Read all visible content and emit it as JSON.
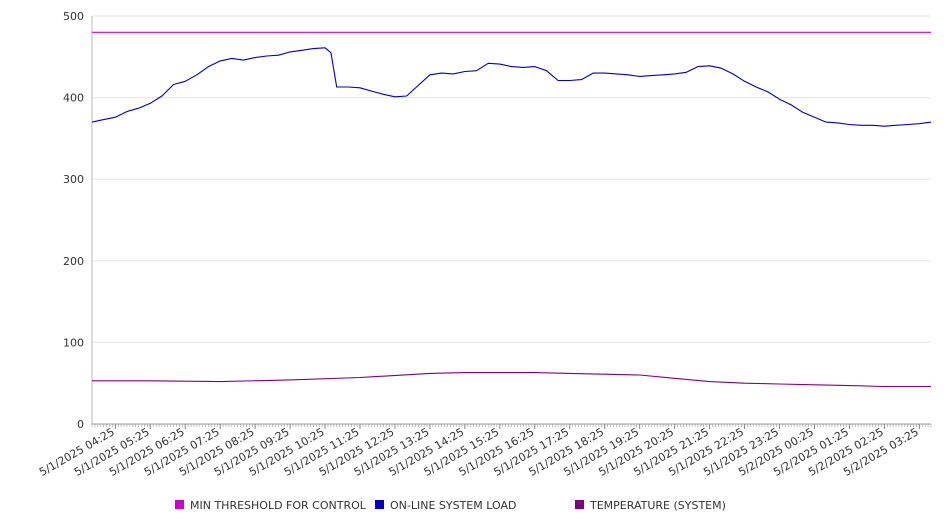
{
  "chart_data": {
    "type": "line",
    "title": "",
    "xlabel": "",
    "ylabel": "",
    "ylim": [
      0,
      500
    ],
    "yticks": [
      0,
      100,
      200,
      300,
      400,
      500
    ],
    "grid": true,
    "legend_position": "bottom",
    "x_tick_labels": [
      "5/1/2025 04:25",
      "5/1/2025 05:25",
      "5/1/2025 06:25",
      "5/1/2025 07:25",
      "5/1/2025 08:25",
      "5/1/2025 09:25",
      "5/1/2025 10:25",
      "5/1/2025 11:25",
      "5/1/2025 12:25",
      "5/1/2025 13:25",
      "5/1/2025 14:25",
      "5/1/2025 15:25",
      "5/1/2025 16:25",
      "5/1/2025 17:25",
      "5/1/2025 18:25",
      "5/1/2025 19:25",
      "5/1/2025 20:25",
      "5/1/2025 21:25",
      "5/1/2025 22:25",
      "5/1/2025 23:25",
      "5/2/2025 00:25",
      "5/2/2025 01:25",
      "5/2/2025 02:25",
      "5/2/2025 03:25"
    ],
    "x_range": [
      "5/1/2025 03:45",
      "5/2/2025 03:45"
    ],
    "series": [
      {
        "name": "MIN THRESHOLD FOR CONTROL",
        "color": "#cc00cc",
        "points": [
          [
            "5/1/2025 03:45",
            480
          ],
          [
            "5/2/2025 03:45",
            480
          ]
        ]
      },
      {
        "name": "ON-LINE SYSTEM LOAD",
        "color": "#0000cc",
        "points": [
          [
            "5/1/2025 03:45",
            370
          ],
          [
            "5/1/2025 04:05",
            373
          ],
          [
            "5/1/2025 04:25",
            376
          ],
          [
            "5/1/2025 04:45",
            383
          ],
          [
            "5/1/2025 05:05",
            387
          ],
          [
            "5/1/2025 05:25",
            393
          ],
          [
            "5/1/2025 05:45",
            402
          ],
          [
            "5/1/2025 06:05",
            416
          ],
          [
            "5/1/2025 06:25",
            420
          ],
          [
            "5/1/2025 06:45",
            428
          ],
          [
            "5/1/2025 07:05",
            438
          ],
          [
            "5/1/2025 07:25",
            445
          ],
          [
            "5/1/2025 07:45",
            448
          ],
          [
            "5/1/2025 08:05",
            446
          ],
          [
            "5/1/2025 08:25",
            449
          ],
          [
            "5/1/2025 08:45",
            451
          ],
          [
            "5/1/2025 09:05",
            452
          ],
          [
            "5/1/2025 09:25",
            456
          ],
          [
            "5/1/2025 09:45",
            458
          ],
          [
            "5/1/2025 10:05",
            460
          ],
          [
            "5/1/2025 10:25",
            461
          ],
          [
            "5/1/2025 10:35",
            455
          ],
          [
            "5/1/2025 10:45",
            413
          ],
          [
            "5/1/2025 11:05",
            413
          ],
          [
            "5/1/2025 11:25",
            412
          ],
          [
            "5/1/2025 11:45",
            408
          ],
          [
            "5/1/2025 12:05",
            404
          ],
          [
            "5/1/2025 12:25",
            401
          ],
          [
            "5/1/2025 12:45",
            402
          ],
          [
            "5/1/2025 13:05",
            415
          ],
          [
            "5/1/2025 13:25",
            428
          ],
          [
            "5/1/2025 13:45",
            430
          ],
          [
            "5/1/2025 14:05",
            429
          ],
          [
            "5/1/2025 14:25",
            432
          ],
          [
            "5/1/2025 14:45",
            433
          ],
          [
            "5/1/2025 15:05",
            442
          ],
          [
            "5/1/2025 15:25",
            441
          ],
          [
            "5/1/2025 15:45",
            438
          ],
          [
            "5/1/2025 16:05",
            437
          ],
          [
            "5/1/2025 16:25",
            438
          ],
          [
            "5/1/2025 16:45",
            433
          ],
          [
            "5/1/2025 17:05",
            421
          ],
          [
            "5/1/2025 17:25",
            421
          ],
          [
            "5/1/2025 17:45",
            422
          ],
          [
            "5/1/2025 18:05",
            430
          ],
          [
            "5/1/2025 18:25",
            430
          ],
          [
            "5/1/2025 18:45",
            429
          ],
          [
            "5/1/2025 19:05",
            428
          ],
          [
            "5/1/2025 19:25",
            426
          ],
          [
            "5/1/2025 19:45",
            427
          ],
          [
            "5/1/2025 20:05",
            428
          ],
          [
            "5/1/2025 20:25",
            429
          ],
          [
            "5/1/2025 20:45",
            431
          ],
          [
            "5/1/2025 21:05",
            438
          ],
          [
            "5/1/2025 21:25",
            439
          ],
          [
            "5/1/2025 21:45",
            436
          ],
          [
            "5/1/2025 22:05",
            429
          ],
          [
            "5/1/2025 22:25",
            420
          ],
          [
            "5/1/2025 22:45",
            413
          ],
          [
            "5/1/2025 23:05",
            407
          ],
          [
            "5/1/2025 23:25",
            398
          ],
          [
            "5/1/2025 23:45",
            391
          ],
          [
            "5/2/2025 00:05",
            382
          ],
          [
            "5/2/2025 00:25",
            376
          ],
          [
            "5/2/2025 00:45",
            370
          ],
          [
            "5/2/2025 01:05",
            369
          ],
          [
            "5/2/2025 01:25",
            367
          ],
          [
            "5/2/2025 01:45",
            366
          ],
          [
            "5/2/2025 02:05",
            366
          ],
          [
            "5/2/2025 02:25",
            365
          ],
          [
            "5/2/2025 02:45",
            366
          ],
          [
            "5/2/2025 03:05",
            367
          ],
          [
            "5/2/2025 03:25",
            368
          ],
          [
            "5/2/2025 03:45",
            370
          ]
        ]
      },
      {
        "name": "TEMPERATURE (SYSTEM)",
        "color": "#800080",
        "points": [
          [
            "5/1/2025 03:45",
            53
          ],
          [
            "5/1/2025 05:25",
            53
          ],
          [
            "5/1/2025 07:25",
            52
          ],
          [
            "5/1/2025 09:25",
            54
          ],
          [
            "5/1/2025 11:25",
            57
          ],
          [
            "5/1/2025 13:25",
            62
          ],
          [
            "5/1/2025 14:25",
            63
          ],
          [
            "5/1/2025 15:25",
            63
          ],
          [
            "5/1/2025 16:25",
            63
          ],
          [
            "5/1/2025 17:25",
            62
          ],
          [
            "5/1/2025 18:25",
            61
          ],
          [
            "5/1/2025 19:25",
            60
          ],
          [
            "5/1/2025 20:25",
            56
          ],
          [
            "5/1/2025 21:25",
            52
          ],
          [
            "5/1/2025 22:25",
            50
          ],
          [
            "5/1/2025 23:25",
            49
          ],
          [
            "5/2/2025 00:25",
            48
          ],
          [
            "5/2/2025 01:25",
            47
          ],
          [
            "5/2/2025 02:25",
            46
          ],
          [
            "5/2/2025 03:45",
            46
          ]
        ]
      }
    ]
  }
}
